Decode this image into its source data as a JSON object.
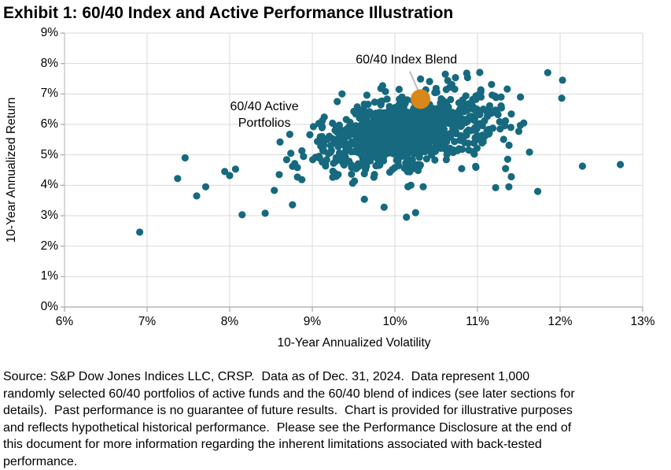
{
  "title": "Exhibit 1: 60/40 Index and Active Performance Illustration",
  "chart_data": {
    "type": "scatter",
    "title": "Exhibit 1: 60/40 Index and Active Performance Illustration",
    "xlabel": "10-Year Annualized Volatility",
    "ylabel": "10-Year Annualized Return",
    "xlim": [
      6,
      13
    ],
    "ylim": [
      0,
      9
    ],
    "x_tick_values": [
      6,
      7,
      8,
      9,
      10,
      11,
      12,
      13
    ],
    "x_tick_labels": [
      "6%",
      "7%",
      "8%",
      "9%",
      "10%",
      "11%",
      "12%",
      "13%"
    ],
    "y_tick_values": [
      0,
      1,
      2,
      3,
      4,
      5,
      6,
      7,
      8,
      9
    ],
    "y_tick_labels": [
      "0%",
      "1%",
      "2%",
      "3%",
      "4%",
      "5%",
      "6%",
      "7%",
      "8%",
      "9%"
    ],
    "grid": true,
    "legend_position": "none",
    "grid_color": "#D9D9D9",
    "axis_color": "#BFBFBF",
    "bottom_axis_color": "#A6A6A6",
    "tick_color": "#A6A6A6",
    "series": [
      {
        "name": "60/40 Active Portfolios",
        "color": "#16697E",
        "marker_radius": 4.6,
        "total_points": 1000,
        "cluster": {
          "count": 952,
          "mean": [
            10.12,
            5.72
          ],
          "std": [
            0.52,
            0.62
          ],
          "corr": 0.38,
          "clip_x": [
            8.55,
            11.95
          ],
          "clip_y": [
            3.2,
            7.78
          ],
          "seed": 987654321
        },
        "points": [
          [
            6.91,
            2.46
          ],
          [
            7.46,
            4.9
          ],
          [
            7.37,
            4.22
          ],
          [
            7.6,
            3.65
          ],
          [
            7.71,
            3.95
          ],
          [
            7.94,
            4.45
          ],
          [
            8.0,
            4.32
          ],
          [
            8.07,
            4.53
          ],
          [
            8.15,
            3.03
          ],
          [
            8.43,
            3.08
          ],
          [
            8.54,
            3.83
          ],
          [
            8.6,
            4.35
          ],
          [
            8.69,
            4.84
          ],
          [
            8.76,
            3.36
          ],
          [
            8.82,
            4.58
          ],
          [
            8.82,
            4.27
          ],
          [
            8.61,
            5.42
          ],
          [
            8.74,
            5.05
          ],
          [
            8.97,
            5.66
          ],
          [
            9.12,
            5.93
          ],
          [
            9.36,
            7.0
          ],
          [
            9.63,
            3.54
          ],
          [
            9.87,
            3.28
          ],
          [
            10.14,
            2.95
          ],
          [
            10.25,
            3.1
          ],
          [
            9.83,
            7.18
          ],
          [
            10.31,
            7.49
          ],
          [
            10.42,
            7.41
          ],
          [
            10.64,
            7.44
          ],
          [
            10.69,
            7.31
          ],
          [
            10.88,
            7.54
          ],
          [
            10.87,
            7.68
          ],
          [
            11.04,
            7.1
          ],
          [
            11.17,
            7.31
          ],
          [
            11.36,
            7.16
          ],
          [
            11.52,
            6.9
          ],
          [
            11.29,
            6.54
          ],
          [
            11.63,
            5.09
          ],
          [
            11.34,
            4.55
          ],
          [
            11.41,
            4.28
          ],
          [
            11.22,
            3.92
          ],
          [
            11.38,
            3.95
          ],
          [
            11.73,
            3.8
          ],
          [
            11.85,
            7.7
          ],
          [
            12.03,
            7.45
          ],
          [
            12.02,
            6.86
          ],
          [
            12.27,
            4.63
          ],
          [
            12.73,
            4.68
          ]
        ]
      },
      {
        "name": "60/40 Index Blend",
        "color": "#D9861A",
        "marker_radius": 12.5,
        "points": [
          [
            10.31,
            6.83
          ]
        ]
      }
    ],
    "annotations": [
      {
        "id": "active-portfolios-label",
        "text": "60/40 Active\nPortfolios",
        "x": 8.42,
        "y": 6.32
      },
      {
        "id": "index-blend-label",
        "text": "60/40 Index Blend",
        "x": 10.14,
        "y": 8.12,
        "leader": {
          "from": [
            10.18,
            7.74
          ],
          "to": [
            10.3,
            7.0
          ],
          "color": "#BDBDBD"
        }
      }
    ]
  },
  "footer": {
    "lines": [
      "Source: S&P Dow Jones Indices LLC, CRSP.  Data as of Dec. 31, 2024.  Data represent 1,000",
      "randomly selected 60/40 portfolios of active funds and the 60/40 blend of indices (see later sections for",
      "details).  Past performance is no guarantee of future results.  Chart is provided for illustrative purposes",
      "and reflects hypothetical historical performance.  Please see the Performance Disclosure at the end of",
      "this document for more information regarding the inherent limitations associated with back-tested",
      "performance."
    ]
  }
}
